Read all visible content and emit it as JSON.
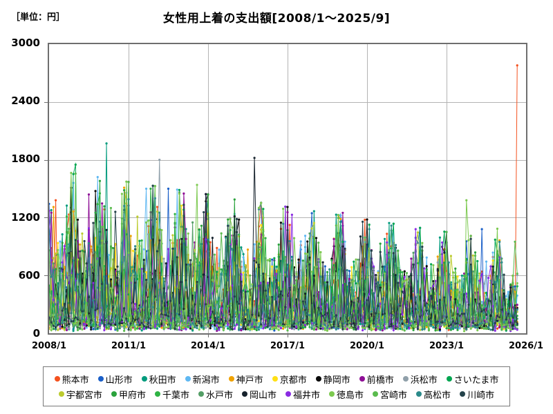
{
  "header": {
    "unit_label": "［単位：円］",
    "title": "女性用上着の支出額[2008/1～2025/9]"
  },
  "chart_data": {
    "type": "line",
    "title": "女性用上着の支出額[2008/1～2025/9]",
    "unit": "円",
    "x_start": "2008/1",
    "x_end": "2025/9",
    "data_months": 213,
    "axis_months_total": 216,
    "ylim": [
      0,
      3000
    ],
    "yticks": [
      0,
      600,
      1200,
      1800,
      2400,
      3000
    ],
    "xticks": [
      {
        "label": "2008/1",
        "month": 0
      },
      {
        "label": "2011/1",
        "month": 36
      },
      {
        "label": "2014/1",
        "month": 72
      },
      {
        "label": "2017/1",
        "month": 108
      },
      {
        "label": "2020/1",
        "month": 144
      },
      {
        "label": "2023/1",
        "month": 180
      },
      {
        "label": "2026/1",
        "month": 216
      }
    ],
    "grid": true,
    "legend_position": "bottom",
    "axis_color": "#6e6e6e",
    "grid_color": "#b3b3b3",
    "marker": "dot",
    "series": [
      {
        "name": "熊本市",
        "color": "#F4511E",
        "approx_base": 90,
        "typical_peak": 1250,
        "seed": 1,
        "notable_spikes": [
          [
            3,
            1380
          ],
          [
            212,
            2780
          ]
        ]
      },
      {
        "name": "山形市",
        "color": "#1A5FC8",
        "approx_base": 80,
        "typical_peak": 1350,
        "seed": 2,
        "notable_spikes": [
          [
            54,
            1500
          ],
          [
            196,
            1080
          ]
        ]
      },
      {
        "name": "秋田市",
        "color": "#009B7D",
        "approx_base": 70,
        "typical_peak": 1400,
        "seed": 3,
        "notable_spikes": [
          [
            26,
            1970
          ]
        ]
      },
      {
        "name": "新潟市",
        "color": "#5FB8F2",
        "approx_base": 90,
        "typical_peak": 1450,
        "seed": 4,
        "notable_spikes": [
          [
            11,
            1560
          ],
          [
            44,
            1500
          ]
        ]
      },
      {
        "name": "神戸市",
        "color": "#F0A202",
        "approx_base": 110,
        "typical_peak": 1150,
        "seed": 5,
        "notable_spikes": [
          [
            2,
            1310
          ]
        ]
      },
      {
        "name": "京都市",
        "color": "#FFE014",
        "approx_base": 120,
        "typical_peak": 1100,
        "seed": 6,
        "notable_spikes": [
          [
            72,
            1240
          ]
        ]
      },
      {
        "name": "静岡市",
        "color": "#0A0A0A",
        "approx_base": 100,
        "typical_peak": 1300,
        "seed": 7,
        "notable_spikes": [
          [
            10,
            1510
          ],
          [
            86,
            1180
          ]
        ]
      },
      {
        "name": "前橋市",
        "color": "#8E0F96",
        "approx_base": 70,
        "typical_peak": 1200,
        "seed": 8,
        "notable_spikes": [
          [
            18,
            1440
          ],
          [
            61,
            1450
          ],
          [
            133,
            1250
          ]
        ]
      },
      {
        "name": "浜松市",
        "color": "#90A0AA",
        "approx_base": 90,
        "typical_peak": 1100,
        "seed": 9,
        "notable_spikes": [
          [
            50,
            1800
          ]
        ]
      },
      {
        "name": "さいたま市",
        "color": "#00A550",
        "approx_base": 100,
        "typical_peak": 1350,
        "seed": 10,
        "notable_spikes": [
          [
            12,
            1750
          ]
        ]
      },
      {
        "name": "宇都宮市",
        "color": "#BCCB2F",
        "approx_base": 90,
        "typical_peak": 1150,
        "seed": 11,
        "notable_spikes": [
          [
            40,
            1210
          ]
        ]
      },
      {
        "name": "甲府市",
        "color": "#2AA23C",
        "approx_base": 60,
        "typical_peak": 1250,
        "seed": 12,
        "notable_spikes": [
          [
            150,
            930
          ]
        ]
      },
      {
        "name": "千葉市",
        "color": "#2FB344",
        "approx_base": 110,
        "typical_peak": 1200,
        "seed": 13,
        "notable_spikes": [
          [
            22,
            1340
          ]
        ]
      },
      {
        "name": "水戸市",
        "color": "#549E66",
        "approx_base": 80,
        "typical_peak": 1100,
        "seed": 14,
        "notable_spikes": [
          [
            65,
            1150
          ]
        ]
      },
      {
        "name": "岡山市",
        "color": "#16222C",
        "approx_base": 90,
        "typical_peak": 1150,
        "seed": 15,
        "notable_spikes": [
          [
            93,
            1820
          ]
        ]
      },
      {
        "name": "福井市",
        "color": "#8A2BE2",
        "approx_base": 70,
        "typical_peak": 1250,
        "seed": 16,
        "notable_spikes": [
          [
            110,
            1230
          ]
        ]
      },
      {
        "name": "徳島市",
        "color": "#7CC94F",
        "approx_base": 60,
        "typical_peak": 1400,
        "seed": 17,
        "notable_spikes": [
          [
            67,
            1540
          ],
          [
            189,
            1380
          ],
          [
            203,
            1085
          ]
        ]
      },
      {
        "name": "宮崎市",
        "color": "#5ABB4E",
        "approx_base": 70,
        "typical_peak": 1300,
        "seed": 18,
        "notable_spikes": [
          [
            28,
            1300
          ],
          [
            211,
            950
          ]
        ]
      },
      {
        "name": "高松市",
        "color": "#2B8A8A",
        "approx_base": 90,
        "typical_peak": 1100,
        "seed": 19,
        "notable_spikes": [
          [
            145,
            1080
          ]
        ]
      },
      {
        "name": "川崎市",
        "color": "#24424A",
        "approx_base": 100,
        "typical_peak": 1200,
        "seed": 20,
        "notable_spikes": [
          [
            30,
            1260
          ]
        ]
      }
    ]
  }
}
